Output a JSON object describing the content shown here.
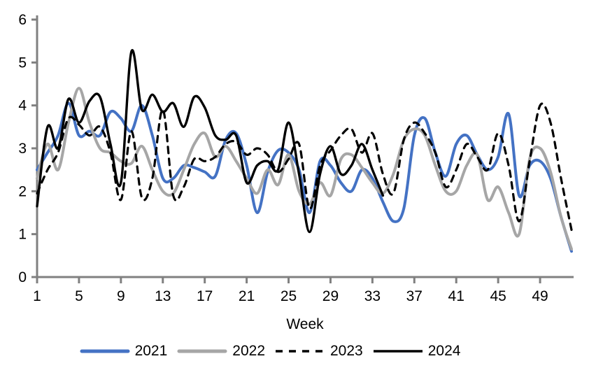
{
  "chart_data": {
    "type": "line",
    "title": "",
    "xlabel": "Week",
    "ylabel": "",
    "ylim": [
      0,
      6
    ],
    "xlim": [
      1,
      52
    ],
    "grid": false,
    "legend_position": "bottom",
    "y_ticks": [
      0,
      1,
      2,
      3,
      4,
      5,
      6
    ],
    "x_ticks": [
      1,
      5,
      9,
      13,
      17,
      21,
      25,
      29,
      33,
      37,
      41,
      45,
      49
    ],
    "x": "weeks 1-52",
    "series": [
      {
        "name": "2021",
        "color": "#4472C4",
        "style": "solid",
        "values": [
          2.5,
          2.9,
          3.3,
          4.05,
          3.3,
          3.4,
          3.3,
          3.85,
          3.7,
          3.4,
          4.0,
          3.3,
          2.3,
          2.3,
          2.6,
          2.55,
          2.45,
          2.35,
          3.2,
          3.35,
          2.6,
          1.5,
          2.45,
          2.95,
          2.9,
          2.5,
          1.5,
          2.7,
          2.6,
          2.2,
          2.0,
          2.5,
          2.3,
          1.75,
          1.3,
          1.6,
          3.3,
          3.7,
          2.9,
          2.35,
          3.1,
          3.3,
          2.85,
          2.5,
          2.8,
          3.8,
          1.9,
          2.6,
          2.7,
          2.3,
          1.4,
          0.6
        ]
      },
      {
        "name": "2022",
        "color": "#A6A6A6",
        "style": "solid",
        "values": [
          2.3,
          3.1,
          2.5,
          3.6,
          4.4,
          3.6,
          3.0,
          2.9,
          2.7,
          2.65,
          3.05,
          2.5,
          2.0,
          1.95,
          2.5,
          3.1,
          3.35,
          2.8,
          3.05,
          2.7,
          2.3,
          1.95,
          2.5,
          2.15,
          2.85,
          2.0,
          1.7,
          2.2,
          1.9,
          2.75,
          2.85,
          2.55,
          2.2,
          1.95,
          2.4,
          3.2,
          3.45,
          3.3,
          2.6,
          2.0,
          2.0,
          2.6,
          2.85,
          1.8,
          2.1,
          1.5,
          1.0,
          2.75,
          3.0,
          2.45,
          1.4,
          0.65
        ]
      },
      {
        "name": "2023",
        "color": "#000000",
        "style": "dashed",
        "values": [
          1.95,
          2.5,
          2.9,
          3.7,
          3.55,
          3.3,
          3.5,
          2.9,
          1.8,
          3.4,
          1.85,
          2.3,
          3.9,
          1.9,
          2.1,
          2.75,
          2.7,
          2.8,
          3.1,
          3.15,
          2.85,
          3.0,
          2.85,
          2.45,
          2.75,
          3.1,
          1.6,
          2.6,
          2.95,
          3.3,
          3.45,
          2.9,
          3.35,
          2.4,
          1.95,
          3.2,
          3.6,
          3.35,
          2.9,
          2.1,
          2.5,
          3.1,
          2.8,
          2.5,
          3.35,
          2.6,
          1.3,
          2.7,
          4.0,
          3.6,
          2.3,
          1.1
        ]
      },
      {
        "name": "2024",
        "color": "#000000",
        "style": "solid",
        "values": [
          1.65,
          3.5,
          3.0,
          4.15,
          3.6,
          4.1,
          4.2,
          3.1,
          2.2,
          5.25,
          3.9,
          4.25,
          3.85,
          4.05,
          3.5,
          4.2,
          3.95,
          3.3,
          3.2,
          3.3,
          2.2,
          2.6,
          2.7,
          2.5,
          3.6,
          2.4,
          1.05,
          2.4,
          3.05,
          2.4,
          2.6,
          3.1,
          2.5,
          1.9
        ]
      }
    ],
    "colors": {
      "axis": "#808080",
      "tick_text": "#000000"
    }
  }
}
